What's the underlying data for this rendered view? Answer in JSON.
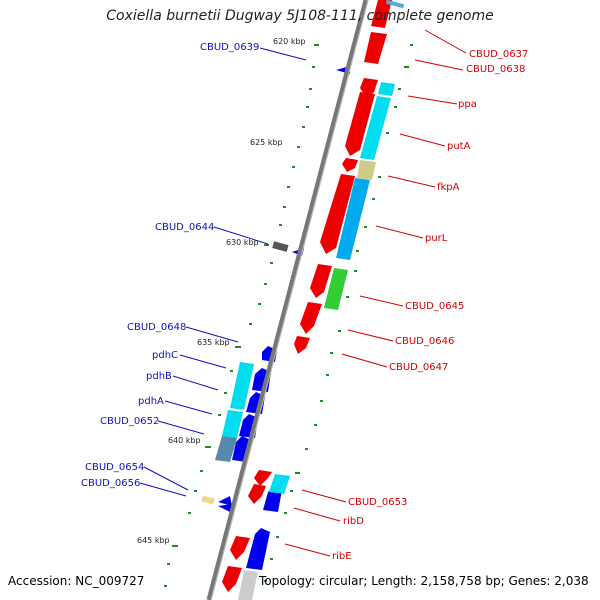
{
  "title": "Coxiella burnetii Dugway 5J108-111, complete genome",
  "footer": {
    "accession": "Accession: NC_009727",
    "topology": "Topology: circular; Length: 2,158,758 bp; Genes: 2,038"
  },
  "kbp_ticks": [
    "620 kbp",
    "625 kbp",
    "630 kbp",
    "635 kbp",
    "640 kbp",
    "645 kbp"
  ],
  "forward_labels": [
    "CBUD_0637",
    "CBUD_0638",
    "ppa",
    "putA",
    "fkpA",
    "purL",
    "CBUD_0645",
    "CBUD_0646",
    "CBUD_0647",
    "CBUD_0653",
    "ribD",
    "ribE"
  ],
  "reverse_labels": [
    "CBUD_0639",
    "CBUD_0644",
    "CBUD_0648",
    "pdhC",
    "pdhB",
    "pdhA",
    "CBUD_0652",
    "CBUD_0654",
    "CBUD_0656"
  ],
  "colors": {
    "forward_cds": "#ee0000",
    "reverse_cds": "#0000ee",
    "forward_cog": "#00ddee",
    "reverse_cog": "#00ddee",
    "blue_cog": "#00aaee",
    "green_cog": "#33cc33",
    "tan_cog": "#cccc88",
    "steel_cog": "#5588aa",
    "backbone": "#777777",
    "gc_dot": "#228b22"
  }
}
